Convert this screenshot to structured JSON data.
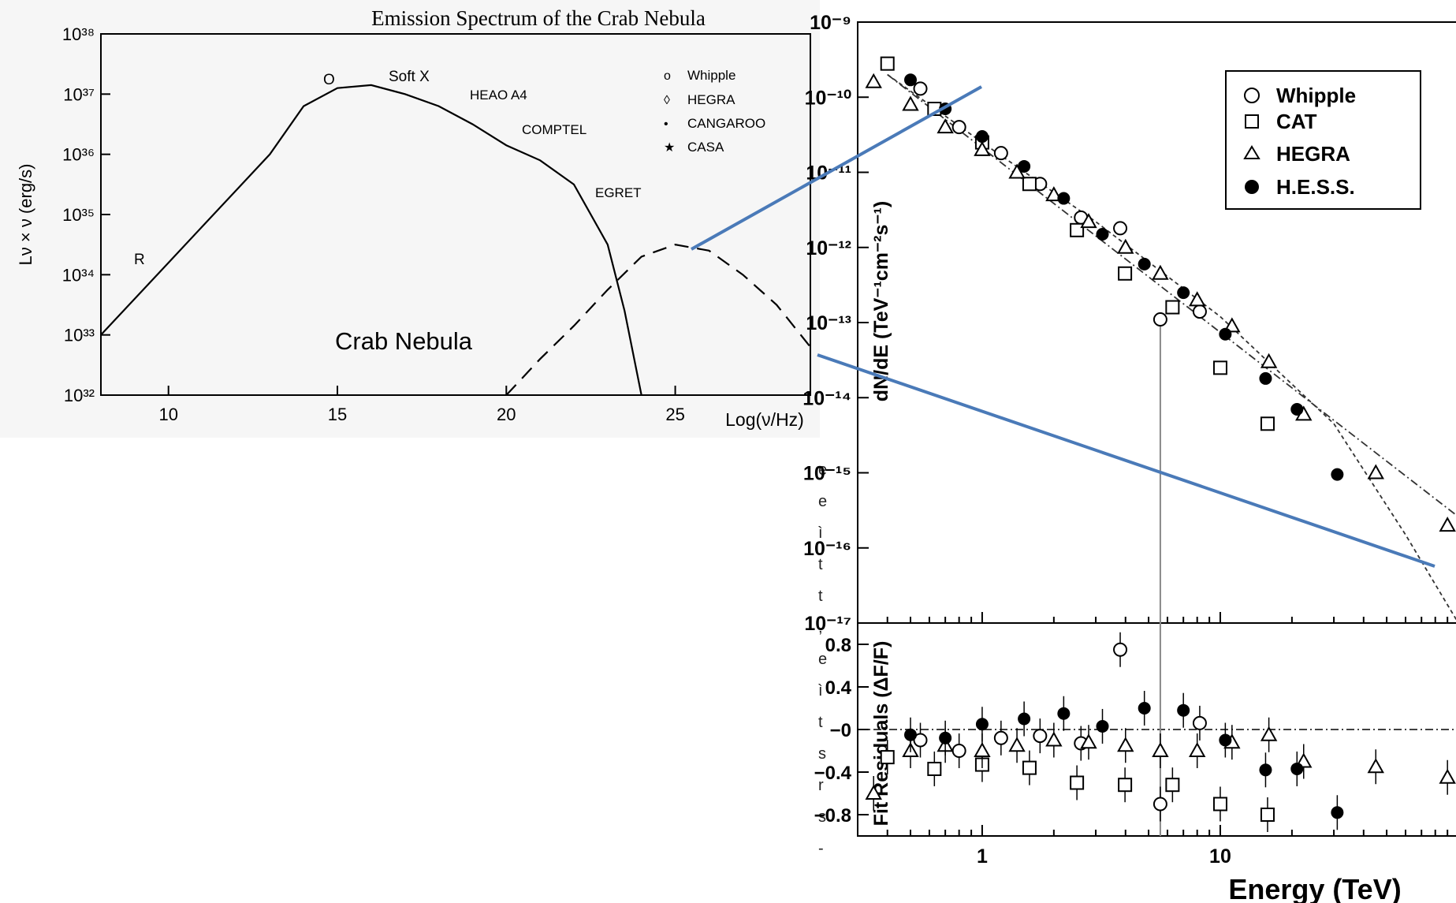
{
  "chart_data": [
    {
      "type": "line",
      "title": "Emission Spectrum of the Crab Nebula",
      "xlabel": "Log(ν/Hz)",
      "ylabel": "Lν × ν  (erg/s)",
      "y_scale": "log",
      "xlim": [
        8,
        29
      ],
      "ylim": [
        1e+32,
        1e+38
      ],
      "x_ticks": [
        "10",
        "15",
        "20",
        "25"
      ],
      "y_ticks": [
        "10^32",
        "10^33",
        "10^34",
        "10^35",
        "10^36",
        "10^37",
        "10^38"
      ],
      "in_plot_labels": [
        "R",
        "O",
        "Soft X",
        "HEAO A4",
        "COMPTEL",
        "EGRET",
        "Crab Nebula"
      ],
      "legend": [
        "Whipple",
        "HEGRA",
        "CANGAROO",
        "CASA"
      ],
      "legend_markers": [
        "o",
        "◊",
        "•",
        "★"
      ],
      "series": [
        {
          "style": "solid",
          "x": [
            8.0,
            9.0,
            10.0,
            11.0,
            12.0,
            13.0,
            14.0,
            15.0,
            16.0,
            17.0,
            18.0,
            19.0,
            20.0,
            21.0,
            22.0,
            23.0,
            23.5,
            24.0
          ],
          "y": [
            33.0,
            33.6,
            34.2,
            34.8,
            35.4,
            36.0,
            36.8,
            37.1,
            37.15,
            37.0,
            36.8,
            36.5,
            36.15,
            35.9,
            35.5,
            34.5,
            33.4,
            32.0
          ]
        },
        {
          "style": "dashed",
          "x": [
            20.0,
            21.0,
            22.0,
            23.0,
            24.0,
            25.0,
            26.0,
            27.0,
            28.0,
            29.0
          ],
          "y": [
            32.0,
            32.6,
            33.15,
            33.75,
            34.3,
            34.5,
            34.4,
            34.0,
            33.5,
            32.8
          ]
        }
      ]
    },
    {
      "type": "scatter",
      "ylabel": "dN/dE (TeV⁻¹cm⁻²s⁻¹)",
      "xlabel": "Energy (TeV)",
      "x_scale": "log",
      "y_scale": "log",
      "xlim": [
        0.3,
        100
      ],
      "ylim": [
        1e-17,
        1e-09
      ],
      "x_ticks": [
        "1",
        "10"
      ],
      "y_ticks": [
        "10^-9",
        "10^-10",
        "10^-11",
        "10^-12",
        "10^-13",
        "10^-14",
        "10^-15",
        "10^-16",
        "10^-17"
      ],
      "legend": [
        "Whipple",
        "CAT",
        "HEGRA",
        "H.E.S.S."
      ],
      "series": [
        {
          "name": "Whipple",
          "marker": "open-circle",
          "x": [
            0.55,
            0.8,
            1.2,
            1.75,
            2.6,
            3.8,
            5.6,
            8.2
          ],
          "y": [
            1.3e-10,
            4e-11,
            1.8e-11,
            7e-12,
            2.5e-12,
            1.8e-12,
            1.1e-13,
            1.4e-13
          ]
        },
        {
          "name": "CAT",
          "marker": "open-square",
          "x": [
            0.4,
            0.63,
            1.0,
            1.58,
            2.5,
            3.98,
            6.3,
            10.0,
            15.8
          ],
          "y": [
            2.8e-10,
            7e-11,
            2.5e-11,
            7e-12,
            1.7e-12,
            4.5e-13,
            1.6e-13,
            2.5e-14,
            4.5e-15
          ]
        },
        {
          "name": "HEGRA",
          "marker": "open-triangle",
          "x": [
            0.35,
            0.5,
            0.7,
            1.0,
            1.4,
            2.0,
            2.8,
            4.0,
            5.6,
            8.0,
            11.2,
            16.0,
            22.4,
            45.0,
            90.0
          ],
          "y": [
            1.6e-10,
            8e-11,
            4e-11,
            2e-11,
            1e-11,
            5e-12,
            2.2e-12,
            1e-12,
            4.5e-13,
            2e-13,
            9e-14,
            3e-14,
            6e-15,
            1e-15,
            2e-16
          ]
        },
        {
          "name": "H.E.S.S.",
          "marker": "filled-circle",
          "x": [
            0.5,
            0.7,
            1.0,
            1.5,
            2.2,
            3.2,
            4.8,
            7.0,
            10.5,
            15.5,
            21.0,
            31.0
          ],
          "y": [
            1.7e-10,
            7e-11,
            3e-11,
            1.2e-11,
            4.5e-12,
            1.5e-12,
            6e-13,
            2.5e-13,
            7e-14,
            1.8e-14,
            7e-15,
            9.5e-16
          ]
        }
      ],
      "fit_curves": [
        {
          "style": "dash-dot",
          "x": [
            0.4,
            100
          ],
          "y": [
            2e-10,
            2.6e-16
          ]
        },
        {
          "style": "dashed-curve",
          "x": [
            0.4,
            1,
            3,
            10,
            30,
            60,
            100
          ],
          "y": [
            2e-10,
            2.5e-11,
            2.2e-12,
            1.2e-13,
            4.5e-15,
            1.5e-16,
            1e-17
          ]
        }
      ]
    },
    {
      "type": "scatter",
      "ylabel": "Fit Residuals (ΔF/F)",
      "xlabel": "Energy (TeV)",
      "x_scale": "log",
      "xlim": [
        0.3,
        100
      ],
      "ylim": [
        -1.0,
        1.0
      ],
      "y_ticks": [
        "0.8",
        "0.4",
        "−0",
        "−0.4",
        "−0.8"
      ],
      "series": [
        {
          "name": "Whipple",
          "marker": "open-circle",
          "x": [
            0.55,
            0.8,
            1.2,
            1.75,
            2.6,
            3.8,
            5.6,
            8.2
          ],
          "y": [
            -0.1,
            -0.2,
            -0.08,
            -0.06,
            -0.13,
            0.75,
            -0.7,
            0.06
          ]
        },
        {
          "name": "CAT",
          "marker": "open-square",
          "x": [
            0.4,
            0.63,
            1.0,
            1.58,
            2.5,
            3.98,
            6.3,
            10.0,
            15.8
          ],
          "y": [
            -0.26,
            -0.37,
            -0.33,
            -0.36,
            -0.5,
            -0.52,
            -0.52,
            -0.7,
            -0.8
          ]
        },
        {
          "name": "HEGRA",
          "marker": "open-triangle",
          "x": [
            0.35,
            0.5,
            0.7,
            1.0,
            1.4,
            2.0,
            2.8,
            4.0,
            5.6,
            8.0,
            11.2,
            16.0,
            22.4,
            45.0,
            90.0
          ],
          "y": [
            -0.6,
            -0.2,
            -0.15,
            -0.2,
            -0.15,
            -0.1,
            -0.12,
            -0.15,
            -0.2,
            -0.2,
            -0.12,
            -0.05,
            -0.3,
            -0.35,
            -0.45
          ]
        },
        {
          "name": "H.E.S.S.",
          "marker": "filled-circle",
          "x": [
            0.5,
            0.7,
            1.0,
            1.5,
            2.2,
            3.2,
            4.8,
            7.0,
            10.5,
            15.5,
            21.0,
            31.0
          ],
          "y": [
            -0.05,
            -0.08,
            0.05,
            0.1,
            0.15,
            0.03,
            0.2,
            0.18,
            -0.1,
            -0.38,
            -0.37,
            -0.78
          ]
        }
      ]
    }
  ],
  "margin_fragments": [
    "e",
    "e",
    "ì",
    "t",
    "t",
    ",",
    "e",
    "ì",
    "t",
    "s",
    "r",
    "s",
    "-"
  ],
  "colors": {
    "connector": "#4a7ab8",
    "ink": "#000000",
    "panel_bg": "#ffffff",
    "left_bg": "#f6f6f6"
  }
}
